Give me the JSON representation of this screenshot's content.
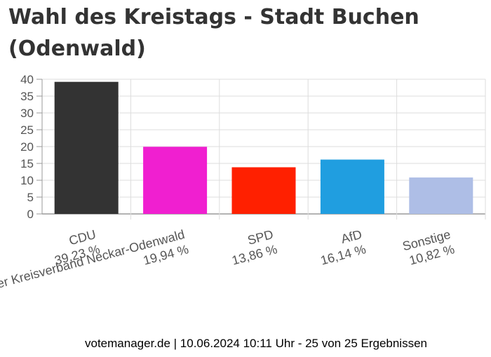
{
  "chart_data": {
    "type": "bar",
    "title": "Wahl des Kreistags - Stadt Buchen (Odenwald)",
    "ylim": [
      0,
      40
    ],
    "yticks": [
      0,
      5,
      10,
      15,
      20,
      25,
      30,
      35,
      40
    ],
    "grid": true,
    "categories": [
      "CDU",
      "Freie Wähler Kreisverband Neckar-Odenwald",
      "SPD",
      "AfD",
      "Sonstige"
    ],
    "value_labels": [
      "39,23 %",
      "19,94 %",
      "13,86 %",
      "16,14 %",
      "10,82 %"
    ],
    "values": [
      39.23,
      19.94,
      13.86,
      16.14,
      10.82
    ],
    "colors": [
      "#333333",
      "#f01fd0",
      "#ff2000",
      "#209ee0",
      "#aebee6"
    ]
  },
  "footer": {
    "text": "votemanager.de | 10.06.2024 10:11 Uhr - 25 von 25 Ergebnissen"
  }
}
